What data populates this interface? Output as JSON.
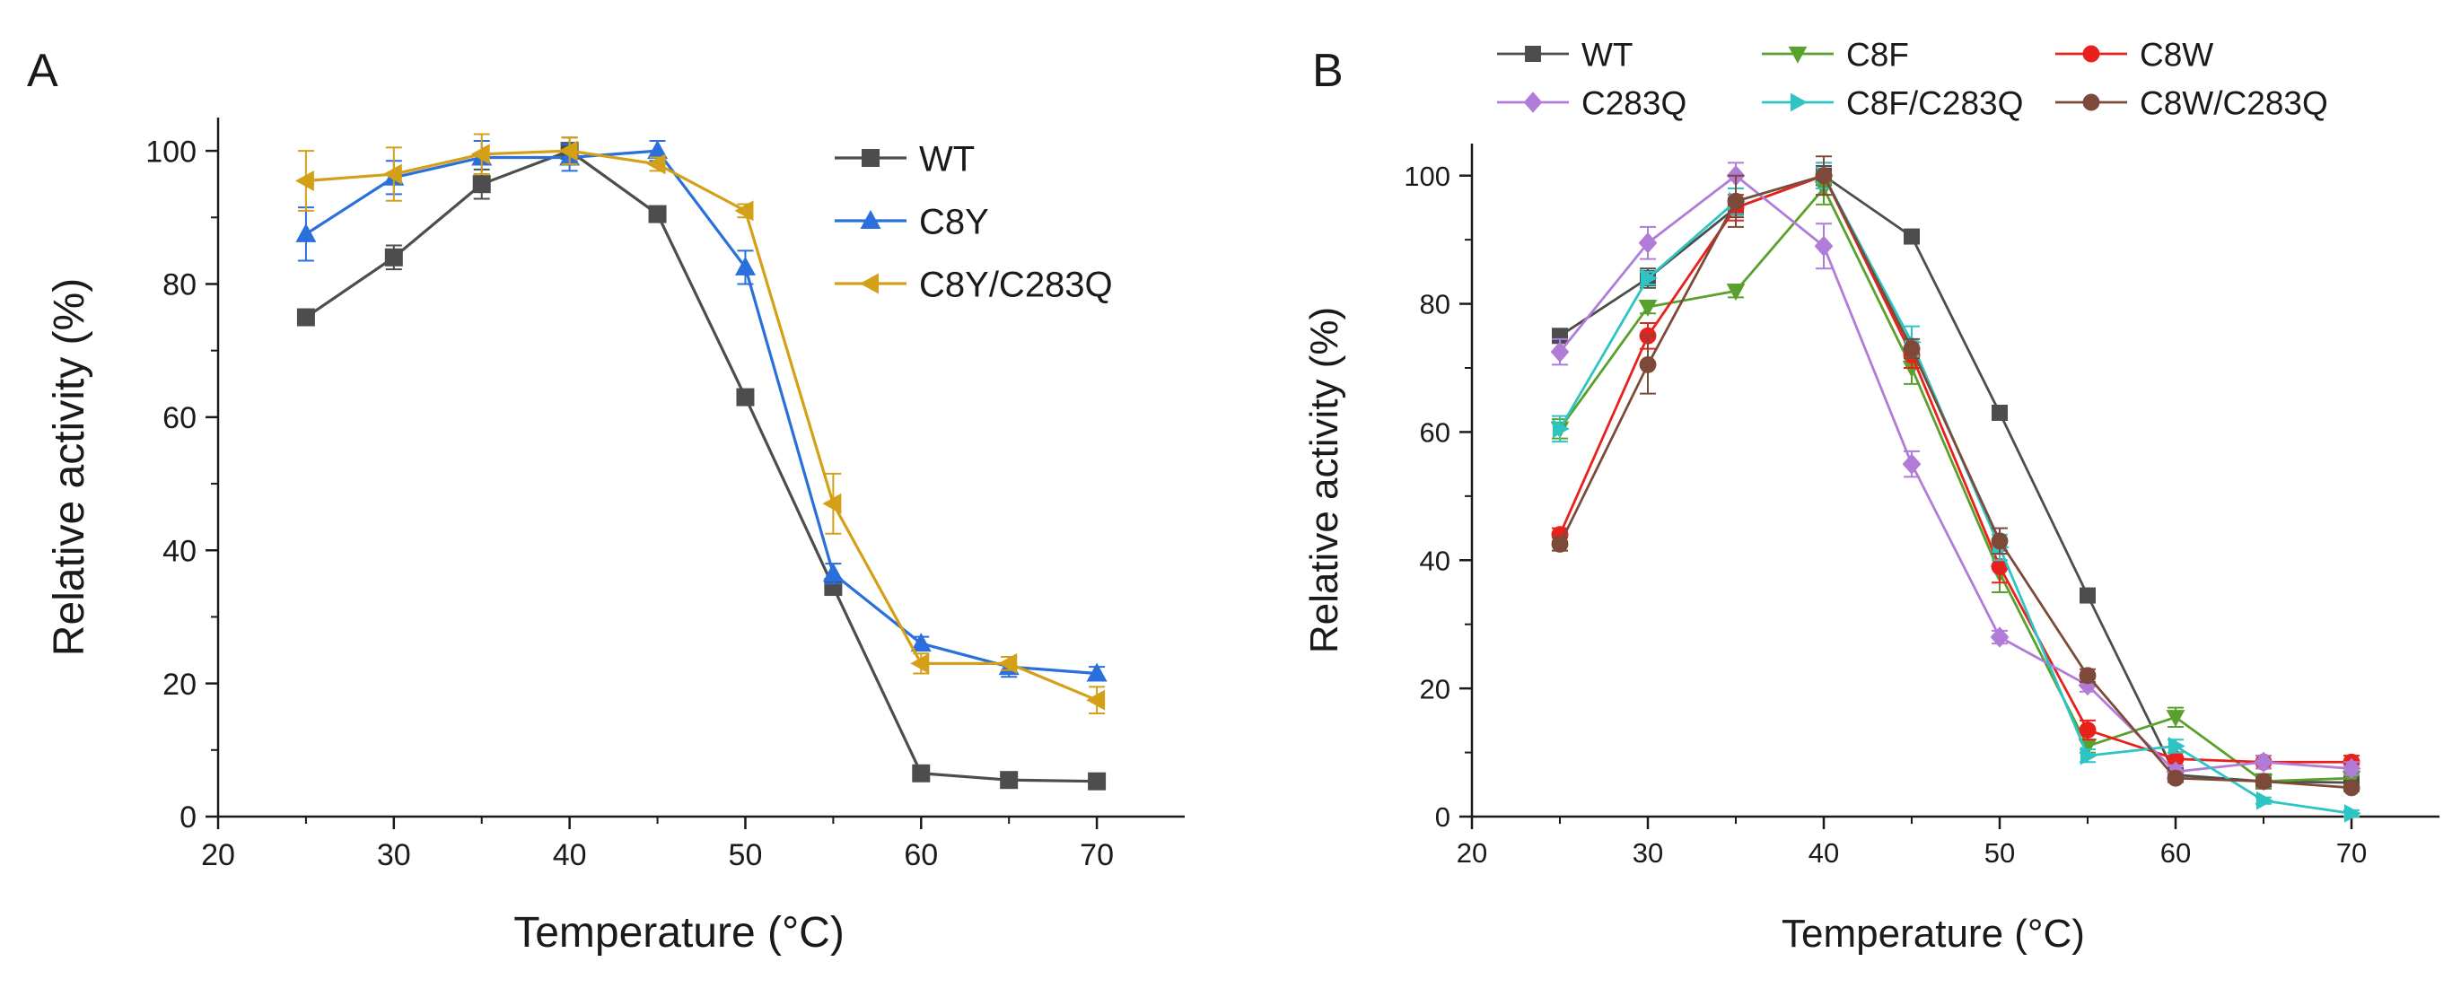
{
  "chart_data": [
    {
      "type": "line",
      "panel_label": "A",
      "xlabel": "Temperature (°C)",
      "ylabel": "Relative activity (%)",
      "xlim": [
        20,
        75
      ],
      "ylim": [
        0,
        105
      ],
      "xticks": [
        20,
        30,
        40,
        50,
        60,
        70
      ],
      "yticks": [
        0,
        20,
        40,
        60,
        80,
        100
      ],
      "grid": false,
      "legend_position": "top-right",
      "x": [
        25,
        30,
        35,
        40,
        45,
        50,
        55,
        60,
        65,
        70
      ],
      "series": [
        {
          "name": "WT",
          "color": "#4d4d4d",
          "marker": "square",
          "values": [
            75,
            84,
            95,
            100,
            90.5,
            63,
            34.5,
            6.5,
            5.5,
            5.3
          ],
          "errors": [
            0.8,
            1.8,
            2.2,
            2.0,
            0.8,
            1.0,
            0.8,
            0.5,
            0.5,
            0.5
          ]
        },
        {
          "name": "C8Y",
          "color": "#2a6fdb",
          "marker": "triangle-up",
          "values": [
            87.5,
            96,
            99,
            99,
            100,
            82.5,
            36.5,
            26,
            22.5,
            21.5
          ],
          "errors": [
            4.0,
            2.5,
            2.5,
            2.0,
            1.5,
            2.5,
            1.5,
            1.0,
            1.5,
            1.0
          ]
        },
        {
          "name": "C8Y/C283Q",
          "color": "#d4a017",
          "marker": "triangle-left",
          "values": [
            95.5,
            96.5,
            99.5,
            100,
            98,
            91,
            47,
            23,
            23,
            17.5
          ],
          "errors": [
            4.5,
            4.0,
            3.0,
            2.0,
            1.0,
            1.0,
            4.5,
            1.5,
            1.0,
            2.0
          ]
        }
      ]
    },
    {
      "type": "line",
      "panel_label": "B",
      "xlabel": "Temperature (°C)",
      "ylabel": "Relative activity (%)",
      "xlim": [
        20,
        75
      ],
      "ylim": [
        0,
        105
      ],
      "xticks": [
        20,
        30,
        40,
        50,
        60,
        70
      ],
      "yticks": [
        0,
        20,
        40,
        60,
        80,
        100
      ],
      "grid": false,
      "legend_position": "top",
      "x": [
        25,
        30,
        35,
        40,
        45,
        50,
        55,
        60,
        65,
        70
      ],
      "series": [
        {
          "name": "WT",
          "color": "#4d4d4d",
          "marker": "square",
          "values": [
            75,
            84,
            95,
            100,
            90.5,
            63,
            34.5,
            6.5,
            5.5,
            5.3
          ],
          "errors": [
            0.8,
            1.5,
            1.5,
            1.5,
            0.8,
            1.0,
            0.8,
            0.5,
            0.5,
            0.5
          ]
        },
        {
          "name": "C8F",
          "color": "#5aa02c",
          "marker": "triangle-down",
          "values": [
            60.5,
            79.5,
            82,
            98,
            70,
            38,
            11,
            15.5,
            5.5,
            6
          ],
          "errors": [
            1.5,
            1.0,
            1.0,
            2.5,
            2.5,
            3.0,
            1.0,
            1.5,
            1.0,
            1.0
          ]
        },
        {
          "name": "C8W",
          "color": "#e8211d",
          "marker": "circle",
          "values": [
            44,
            75,
            95,
            100,
            72,
            39,
            13.5,
            9,
            8.5,
            8.5
          ],
          "errors": [
            1.0,
            2.0,
            2.0,
            2.0,
            2.0,
            2.5,
            1.5,
            1.0,
            1.0,
            1.0
          ]
        },
        {
          "name": "C283Q",
          "color": "#b07cd8",
          "marker": "diamond",
          "values": [
            72.5,
            89.5,
            100,
            89,
            55,
            28,
            20.5,
            7,
            8.5,
            7.5
          ],
          "errors": [
            2.0,
            2.5,
            2.0,
            3.5,
            2.0,
            1.0,
            1.0,
            1.0,
            1.0,
            1.0
          ]
        },
        {
          "name": "C8F/C283Q",
          "color": "#2ec4c4",
          "marker": "triangle-right",
          "values": [
            60.5,
            84,
            96,
            100,
            74,
            42,
            9.5,
            11,
            2.5,
            0.5
          ],
          "errors": [
            2.0,
            1.0,
            2.0,
            2.0,
            2.5,
            2.0,
            1.0,
            1.0,
            0.5,
            0.5
          ]
        },
        {
          "name": "C8W/C283Q",
          "color": "#7d4a3a",
          "marker": "circle",
          "values": [
            42.5,
            70.5,
            96,
            100,
            73,
            43,
            22,
            6,
            5.5,
            4.5
          ],
          "errors": [
            1.0,
            4.5,
            4.0,
            3.0,
            1.5,
            2.0,
            1.0,
            0.5,
            0.5,
            0.5
          ]
        }
      ]
    }
  ]
}
